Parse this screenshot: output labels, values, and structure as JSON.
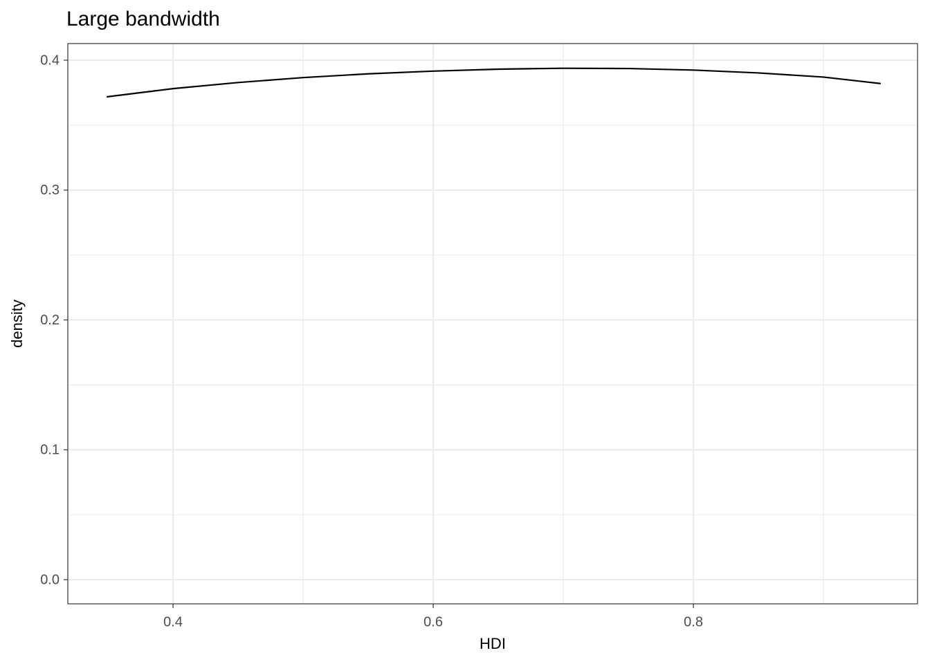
{
  "chart_data": {
    "type": "line",
    "title": "Large bandwidth",
    "x_label": "HDI",
    "y_label": "density",
    "x": [
      0.349,
      0.4,
      0.45,
      0.5,
      0.55,
      0.6,
      0.65,
      0.7,
      0.75,
      0.8,
      0.85,
      0.9,
      0.944
    ],
    "values": [
      0.3718,
      0.3781,
      0.3828,
      0.3866,
      0.3895,
      0.3916,
      0.3931,
      0.3938,
      0.3936,
      0.3924,
      0.3902,
      0.387,
      0.382
    ],
    "color": "#000000",
    "xlim": [
      0.3191,
      0.9723
    ],
    "ylim": [
      -0.0186,
      0.4128
    ],
    "xticks": [
      0.4,
      0.6,
      0.8
    ],
    "yticks": [
      {
        "value": 0,
        "label": "0.0"
      },
      0.1,
      0.2,
      0.3,
      0.4
    ],
    "x_minor_ticks": [
      0.5,
      0.7,
      0.9
    ],
    "y_minor_ticks": [
      0.05,
      0.15,
      0.25,
      0.35
    ],
    "grid": true
  }
}
